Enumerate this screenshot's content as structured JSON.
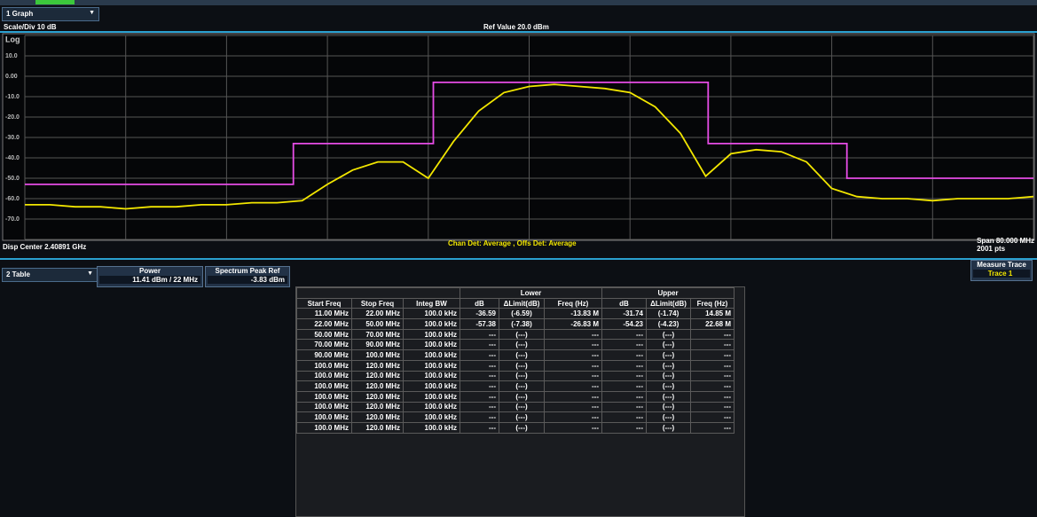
{
  "graph_panel": {
    "selector": "1 Graph",
    "scale": "Scale/Div 10 dB",
    "ref": "Ref Value 20.0 dBm",
    "scale_type": "Log",
    "center": "Disp Center 2.40891 GHz",
    "detector": "Chan Det: Average , Offs Det: Average",
    "span": "Span 80.000 MHz",
    "points": "2001 pts"
  },
  "chart_data": {
    "type": "line",
    "xlim": [
      -40,
      40
    ],
    "ylim": [
      -80,
      20
    ],
    "grid": true,
    "yticks": [
      {
        "value": 10,
        "label": "10.0"
      },
      {
        "value": 0,
        "label": "0.00"
      },
      {
        "value": -10,
        "label": "-10.0"
      },
      {
        "value": -20,
        "label": "-20.0"
      },
      {
        "value": -30,
        "label": "-30.0"
      },
      {
        "value": -40,
        "label": "-40.0"
      },
      {
        "value": -50,
        "label": "-50.0"
      },
      {
        "value": -60,
        "label": "-60.0"
      },
      {
        "value": -70,
        "label": "-70.0"
      }
    ],
    "series": [
      {
        "color": "#f2e600",
        "x": [
          -40,
          -38,
          -36,
          -34,
          -32,
          -30,
          -28,
          -26,
          -24,
          -22,
          -20,
          -18,
          -16,
          -14,
          -12,
          -10,
          -8,
          -6,
          -4,
          -2,
          0,
          2,
          4,
          6,
          8,
          10,
          12,
          14,
          16,
          18,
          20,
          22,
          24,
          26,
          28,
          30,
          32,
          34,
          36,
          38,
          40
        ],
        "values": [
          -63,
          -63,
          -64,
          -64,
          -65,
          -64,
          -64,
          -63,
          -63,
          -62,
          -62,
          -61,
          -53,
          -46,
          -42,
          -42,
          -50,
          -32,
          -17,
          -8,
          -5,
          -4,
          -5,
          -6,
          -8,
          -15,
          -28,
          -49,
          -38,
          -36,
          -37,
          -42,
          -55,
          -59,
          -60,
          -60,
          -61,
          -60,
          -60,
          -60,
          -59
        ]
      },
      {
        "color": "#e64ce6",
        "x": [
          -40,
          -18.7,
          -18.7,
          -7.6,
          -7.6,
          14.2,
          14.2,
          25.2,
          25.2,
          40
        ],
        "values": [
          -53,
          -53,
          -33,
          -33,
          -3,
          -3,
          -33,
          -33,
          -50,
          -50
        ]
      }
    ]
  },
  "table_panel": {
    "selector": "2 Table",
    "power_label": "Power",
    "power_value": "11.41 dBm / 22 MHz",
    "peak_label": "Spectrum Peak Ref",
    "peak_value": "-3.83 dBm",
    "measure_label": "Measure Trace",
    "measure_value": "Trace 1"
  },
  "table": {
    "groups": [
      "Lower",
      "Upper"
    ],
    "header": [
      "Start Freq",
      "Stop Freq",
      "Integ BW",
      "dB",
      "ΔLimit(dB)",
      "Freq (Hz)",
      "dB",
      "ΔLimit(dB)",
      "Freq (Hz)"
    ],
    "rows": [
      [
        "11.00 MHz",
        "22.00 MHz",
        "100.0 kHz",
        "-36.59",
        "(-6.59)",
        "-13.83 M",
        "-31.74",
        "(-1.74)",
        "14.85 M"
      ],
      [
        "22.00 MHz",
        "50.00 MHz",
        "100.0 kHz",
        "-57.38",
        "(-7.38)",
        "-26.83 M",
        "-54.23",
        "(-4.23)",
        "22.68 M"
      ],
      [
        "50.00 MHz",
        "70.00 MHz",
        "100.0 kHz",
        "---",
        "(---)",
        "---",
        "---",
        "(---)",
        "---"
      ],
      [
        "70.00 MHz",
        "90.00 MHz",
        "100.0 kHz",
        "---",
        "(---)",
        "---",
        "---",
        "(---)",
        "---"
      ],
      [
        "90.00 MHz",
        "100.0 MHz",
        "100.0 kHz",
        "---",
        "(---)",
        "---",
        "---",
        "(---)",
        "---"
      ],
      [
        "100.0 MHz",
        "120.0 MHz",
        "100.0 kHz",
        "---",
        "(---)",
        "---",
        "---",
        "(---)",
        "---"
      ],
      [
        "100.0 MHz",
        "120.0 MHz",
        "100.0 kHz",
        "---",
        "(---)",
        "---",
        "---",
        "(---)",
        "---"
      ],
      [
        "100.0 MHz",
        "120.0 MHz",
        "100.0 kHz",
        "---",
        "(---)",
        "---",
        "---",
        "(---)",
        "---"
      ],
      [
        "100.0 MHz",
        "120.0 MHz",
        "100.0 kHz",
        "---",
        "(---)",
        "---",
        "---",
        "(---)",
        "---"
      ],
      [
        "100.0 MHz",
        "120.0 MHz",
        "100.0 kHz",
        "---",
        "(---)",
        "---",
        "---",
        "(---)",
        "---"
      ],
      [
        "100.0 MHz",
        "120.0 MHz",
        "100.0 kHz",
        "---",
        "(---)",
        "---",
        "---",
        "(---)",
        "---"
      ],
      [
        "100.0 MHz",
        "120.0 MHz",
        "100.0 kHz",
        "---",
        "(---)",
        "---",
        "---",
        "(---)",
        "---"
      ]
    ]
  }
}
